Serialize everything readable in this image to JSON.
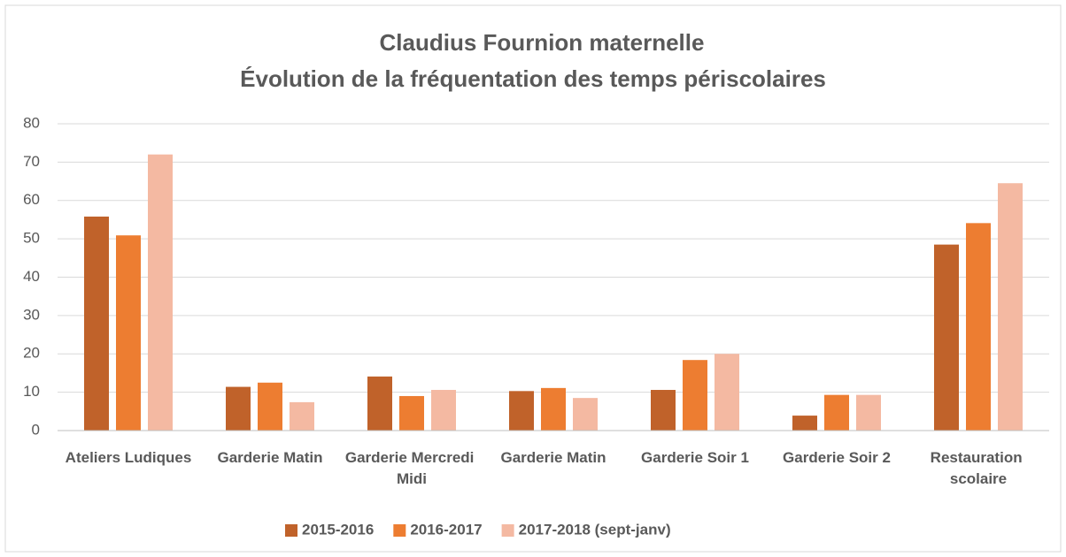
{
  "chart_data": {
    "type": "bar",
    "title": [
      "Claudius Fournion maternelle",
      "Évolution de la fréquentation des temps périscolaires"
    ],
    "categories": [
      "Ateliers Ludiques",
      "Garderie Matin",
      "Garderie Mercredi Midi",
      "Garderie Matin",
      "Garderie Soir 1",
      "Garderie Soir 2",
      "Restauration scolaire"
    ],
    "series": [
      {
        "name": "2015-2016",
        "color": "#c0622a",
        "values": [
          55.8,
          11.4,
          14.1,
          10.3,
          10.6,
          3.9,
          48.5
        ]
      },
      {
        "name": "2016-2017",
        "color": "#ed7d31",
        "values": [
          50.9,
          12.5,
          9,
          11.1,
          18.4,
          9.3,
          54.1
        ]
      },
      {
        "name": "2017-2018 (sept-janv)",
        "color": "#f4b9a2",
        "values": [
          72,
          7.4,
          10.6,
          8.5,
          20,
          9.3,
          64.5
        ]
      }
    ],
    "ylim": [
      0,
      80
    ],
    "yticks": [
      0,
      10,
      20,
      30,
      40,
      50,
      60,
      70,
      80
    ],
    "grid": true,
    "legend": "bottom"
  }
}
